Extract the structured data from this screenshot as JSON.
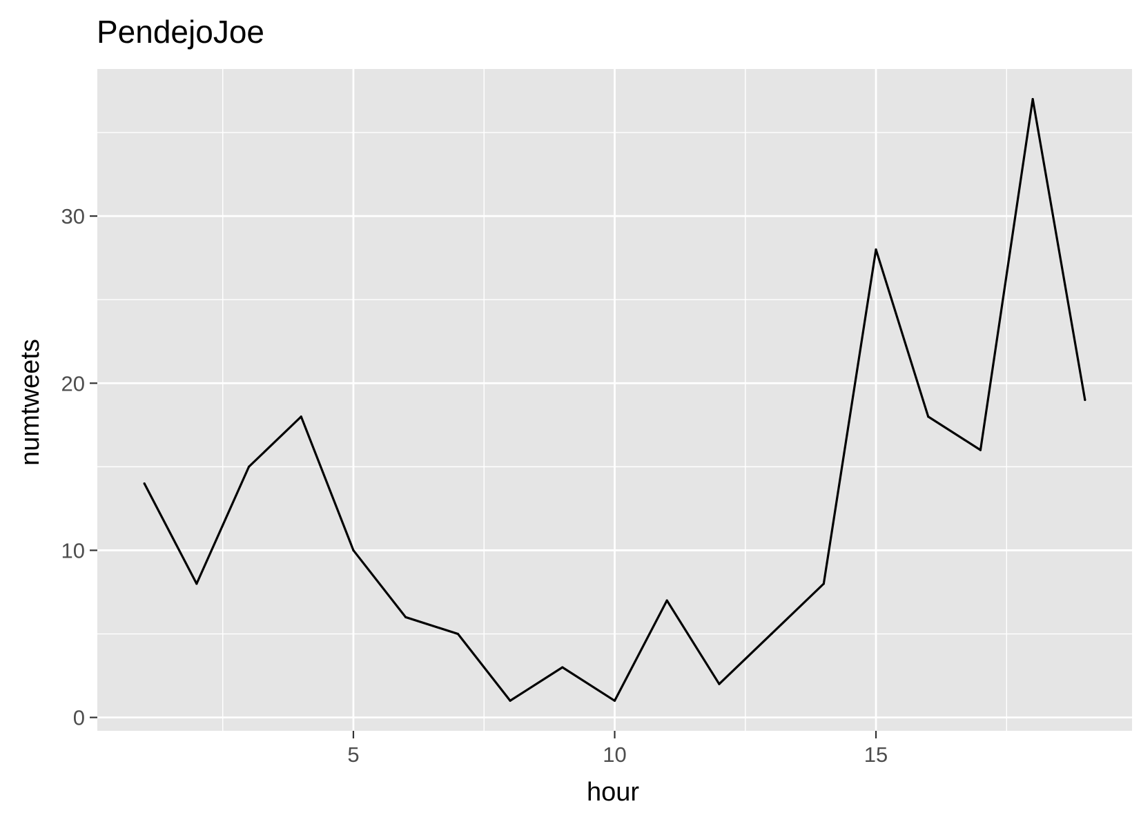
{
  "chart_data": {
    "type": "line",
    "title": "PendejoJoe",
    "xlabel": "hour",
    "ylabel": "numtweets",
    "x": [
      1,
      2,
      3,
      4,
      5,
      6,
      7,
      8,
      9,
      10,
      11,
      12,
      13,
      14,
      15,
      16,
      17,
      18,
      19
    ],
    "series": [
      {
        "values": [
          14,
          8,
          15,
          18,
          10,
          6,
          5,
          1,
          3,
          1,
          7,
          2,
          5,
          8,
          28,
          18,
          16,
          37,
          19
        ]
      }
    ],
    "xlim": [
      0.1,
      19.9
    ],
    "ylim": [
      -0.8,
      38.8
    ],
    "x_ticks": [
      5,
      10,
      15
    ],
    "x_tick_labels": [
      "5",
      "10",
      "15"
    ],
    "y_ticks": [
      0,
      10,
      20,
      30
    ],
    "y_tick_labels": [
      "0",
      "10",
      "20",
      "30"
    ],
    "x_minor_ticks": [
      2.5,
      7.5,
      12.5,
      17.5
    ],
    "y_minor_ticks": [
      5,
      15,
      25,
      35
    ],
    "grid": true,
    "legend": "none",
    "colors": {
      "panel_background": "#e5e5e5",
      "grid": "#ffffff",
      "line": "#000000",
      "tick_text": "#4d4d4d",
      "tick_mark": "#333333"
    }
  }
}
